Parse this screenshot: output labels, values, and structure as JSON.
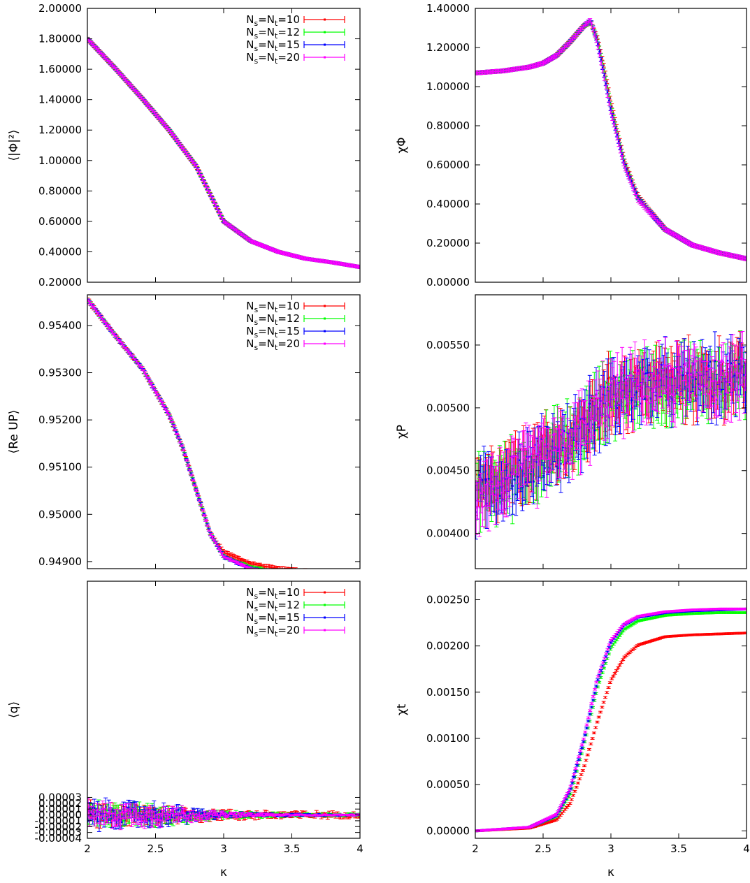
{
  "figure": {
    "xlabel_bottom": "κ",
    "xtick_labels": [
      "2",
      "2.5",
      "3",
      "3.5",
      "4"
    ]
  },
  "legend_labels": [
    "Ns=Nt=10",
    "Ns=Nt=12",
    "Ns=Nt=15",
    "Ns=Nt=20"
  ],
  "colors": {
    "series_10": "#ff0000",
    "series_12": "#00ff00",
    "series_15": "#0000ff",
    "series_20": "#ff00ff",
    "axes": "#000000"
  },
  "chart_data": [
    {
      "type": "scatter",
      "id": "phi2",
      "ylabel": "⟨|Φ|²⟩",
      "xlim": [
        2,
        4
      ],
      "ylim": [
        0.2,
        2.0
      ],
      "ytick_labels": [
        "0.20000",
        "0.40000",
        "0.60000",
        "0.80000",
        "1.00000",
        "1.20000",
        "1.40000",
        "1.60000",
        "1.80000",
        "2.00000"
      ],
      "legend": "top-right",
      "series": [
        {
          "name": "Ns=Nt=10",
          "color": "#ff0000",
          "x": [
            2.0,
            2.2,
            2.4,
            2.6,
            2.8,
            3.0,
            3.2,
            3.4,
            3.6,
            3.8,
            4.0
          ],
          "y": [
            1.8,
            1.61,
            1.41,
            1.2,
            0.96,
            0.6,
            0.47,
            0.4,
            0.355,
            0.33,
            0.3
          ],
          "err": 0.01
        },
        {
          "name": "Ns=Nt=12",
          "color": "#00ff00",
          "x": [
            2.0,
            2.2,
            2.4,
            2.6,
            2.8,
            3.0,
            3.2,
            3.4,
            3.6,
            3.8,
            4.0
          ],
          "y": [
            1.8,
            1.61,
            1.41,
            1.2,
            0.96,
            0.6,
            0.47,
            0.4,
            0.355,
            0.33,
            0.3
          ],
          "err": 0.01
        },
        {
          "name": "Ns=Nt=15",
          "color": "#0000ff",
          "x": [
            2.0,
            2.2,
            2.4,
            2.6,
            2.8,
            3.0,
            3.2,
            3.4,
            3.6,
            3.8,
            4.0
          ],
          "y": [
            1.8,
            1.61,
            1.41,
            1.2,
            0.96,
            0.6,
            0.47,
            0.4,
            0.355,
            0.33,
            0.3
          ],
          "err": 0.01
        },
        {
          "name": "Ns=Nt=20",
          "color": "#ff00ff",
          "x": [
            2.0,
            2.2,
            2.4,
            2.6,
            2.8,
            3.0,
            3.2,
            3.4,
            3.6,
            3.8,
            4.0
          ],
          "y": [
            1.8,
            1.61,
            1.41,
            1.2,
            0.96,
            0.6,
            0.47,
            0.4,
            0.355,
            0.33,
            0.3
          ],
          "err": 0.01
        }
      ]
    },
    {
      "type": "scatter",
      "id": "chiphi",
      "ylabel": "χΦ",
      "xlim": [
        2,
        4
      ],
      "ylim": [
        0.0,
        1.4
      ],
      "ytick_labels": [
        "0.00000",
        "0.20000",
        "0.40000",
        "0.60000",
        "0.80000",
        "1.00000",
        "1.20000",
        "1.40000"
      ],
      "legend": "none",
      "series": [
        {
          "name": "Ns=Nt=10",
          "color": "#ff0000",
          "x": [
            2.0,
            2.2,
            2.4,
            2.5,
            2.6,
            2.7,
            2.8,
            2.85,
            2.9,
            2.95,
            3.0,
            3.1,
            3.2,
            3.4,
            3.6,
            3.8,
            4.0
          ],
          "y": [
            1.07,
            1.08,
            1.1,
            1.12,
            1.16,
            1.23,
            1.31,
            1.33,
            1.25,
            1.1,
            0.92,
            0.62,
            0.44,
            0.27,
            0.19,
            0.15,
            0.12
          ],
          "err": 0.01
        },
        {
          "name": "Ns=Nt=12",
          "color": "#00ff00",
          "x": [
            2.0,
            2.2,
            2.4,
            2.5,
            2.6,
            2.7,
            2.8,
            2.85,
            2.9,
            2.95,
            3.0,
            3.1,
            3.2,
            3.4,
            3.6,
            3.8,
            4.0
          ],
          "y": [
            1.07,
            1.08,
            1.1,
            1.12,
            1.16,
            1.23,
            1.31,
            1.33,
            1.24,
            1.08,
            0.9,
            0.61,
            0.43,
            0.27,
            0.19,
            0.15,
            0.12
          ],
          "err": 0.01
        },
        {
          "name": "Ns=Nt=15",
          "color": "#0000ff",
          "x": [
            2.0,
            2.2,
            2.4,
            2.5,
            2.6,
            2.7,
            2.8,
            2.85,
            2.9,
            2.95,
            3.0,
            3.1,
            3.2,
            3.4,
            3.6,
            3.8,
            4.0
          ],
          "y": [
            1.07,
            1.08,
            1.1,
            1.12,
            1.16,
            1.23,
            1.31,
            1.34,
            1.23,
            1.06,
            0.88,
            0.6,
            0.43,
            0.27,
            0.19,
            0.15,
            0.12
          ],
          "err": 0.01
        },
        {
          "name": "Ns=Nt=20",
          "color": "#ff00ff",
          "x": [
            2.0,
            2.2,
            2.4,
            2.5,
            2.6,
            2.7,
            2.8,
            2.85,
            2.9,
            2.95,
            3.0,
            3.1,
            3.2,
            3.4,
            3.6,
            3.8,
            4.0
          ],
          "y": [
            1.07,
            1.08,
            1.1,
            1.12,
            1.16,
            1.23,
            1.31,
            1.34,
            1.22,
            1.05,
            0.87,
            0.59,
            0.42,
            0.27,
            0.19,
            0.15,
            0.12
          ],
          "err": 0.01
        }
      ]
    },
    {
      "type": "scatter",
      "id": "plaquette",
      "ylabel": "⟨Re UP⟩",
      "xlim": [
        2,
        4
      ],
      "ylim": [
        0.94885,
        0.95465
      ],
      "ytick_labels": [
        "0.94900",
        "0.95000",
        "0.95100",
        "0.95200",
        "0.95300",
        "0.95400"
      ],
      "legend": "top-right",
      "series": [
        {
          "name": "Ns=Nt=10",
          "color": "#ff0000",
          "x": [
            2.0,
            2.2,
            2.4,
            2.6,
            2.7,
            2.8,
            2.9,
            3.0,
            3.2,
            3.4,
            3.6,
            3.8,
            4.0
          ],
          "y": [
            0.95455,
            0.9538,
            0.9531,
            0.9521,
            0.9514,
            0.9505,
            0.9496,
            0.9492,
            0.94895,
            0.94885,
            0.9488,
            0.94875,
            0.9487
          ],
          "err": 4e-05
        },
        {
          "name": "Ns=Nt=12",
          "color": "#00ff00",
          "x": [
            2.0,
            2.2,
            2.4,
            2.6,
            2.7,
            2.8,
            2.9,
            3.0,
            3.2,
            3.4,
            3.6,
            3.8,
            4.0
          ],
          "y": [
            0.95455,
            0.9538,
            0.9531,
            0.9521,
            0.9514,
            0.9505,
            0.9496,
            0.9491,
            0.94888,
            0.94878,
            0.94875,
            0.9487,
            0.94868
          ],
          "err": 3e-05
        },
        {
          "name": "Ns=Nt=15",
          "color": "#0000ff",
          "x": [
            2.0,
            2.2,
            2.4,
            2.6,
            2.7,
            2.8,
            2.9,
            3.0,
            3.2,
            3.4,
            3.6,
            3.8,
            4.0
          ],
          "y": [
            0.95455,
            0.9538,
            0.9531,
            0.9521,
            0.9514,
            0.9505,
            0.9496,
            0.9491,
            0.94885,
            0.94875,
            0.9487,
            0.94868,
            0.94866
          ],
          "err": 3e-05
        },
        {
          "name": "Ns=Nt=20",
          "color": "#ff00ff",
          "x": [
            2.0,
            2.2,
            2.4,
            2.6,
            2.7,
            2.8,
            2.9,
            3.0,
            3.2,
            3.4,
            3.6,
            3.8,
            4.0
          ],
          "y": [
            0.95455,
            0.9538,
            0.9531,
            0.9521,
            0.9514,
            0.9505,
            0.9496,
            0.9491,
            0.94885,
            0.94875,
            0.9487,
            0.94868,
            0.94866
          ],
          "err": 2e-05
        }
      ]
    },
    {
      "type": "scatter",
      "id": "chip",
      "ylabel": "χP",
      "xlim": [
        2,
        4
      ],
      "ylim": [
        0.00372,
        0.0059
      ],
      "ytick_labels": [
        "0.00400",
        "0.00450",
        "0.00500",
        "0.00550"
      ],
      "legend": "none",
      "series": [
        {
          "name": "Ns=Nt=10",
          "color": "#ff0000",
          "x": [
            2.0,
            2.25,
            2.5,
            2.75,
            3.0,
            3.25,
            3.5,
            3.75,
            4.0
          ],
          "y": [
            0.0043,
            0.00445,
            0.0046,
            0.00478,
            0.0051,
            0.00518,
            0.0052,
            0.00522,
            0.00525
          ],
          "err": 0.00018
        },
        {
          "name": "Ns=Nt=12",
          "color": "#00ff00",
          "x": [
            2.0,
            2.25,
            2.5,
            2.75,
            3.0,
            3.25,
            3.5,
            3.75,
            4.0
          ],
          "y": [
            0.0043,
            0.00444,
            0.0046,
            0.00478,
            0.0051,
            0.00517,
            0.0052,
            0.00522,
            0.00525
          ],
          "err": 0.00018
        },
        {
          "name": "Ns=Nt=15",
          "color": "#0000ff",
          "x": [
            2.0,
            2.25,
            2.5,
            2.75,
            3.0,
            3.25,
            3.5,
            3.75,
            4.0
          ],
          "y": [
            0.0043,
            0.00444,
            0.0046,
            0.00478,
            0.0051,
            0.00518,
            0.0052,
            0.00522,
            0.00525
          ],
          "err": 0.00018
        },
        {
          "name": "Ns=Nt=20",
          "color": "#ff00ff",
          "x": [
            2.0,
            2.25,
            2.5,
            2.75,
            3.0,
            3.25,
            3.5,
            3.75,
            4.0
          ],
          "y": [
            0.0043,
            0.00444,
            0.0046,
            0.00478,
            0.0051,
            0.00517,
            0.0052,
            0.00522,
            0.00525
          ],
          "err": 0.00018
        }
      ]
    },
    {
      "type": "scatter",
      "id": "q",
      "ylabel": "⟨q⟩",
      "xlim": [
        2,
        4
      ],
      "ylim": [
        -4e-05,
        0.0004
      ],
      "ytick_labels": [
        "-0.00004",
        "-0.00003",
        "-0.00002",
        "-0.00001",
        "0.00000",
        "0.00001",
        "0.00002",
        "0.00003"
      ],
      "legend": "top-right",
      "series": [
        {
          "name": "Ns=Nt=10",
          "color": "#ff0000",
          "x": [
            2.0,
            2.5,
            3.0,
            3.5,
            4.0
          ],
          "y": [
            0.0,
            0.0,
            0.0,
            0.0,
            0.0
          ],
          "err": [
            1.2e-05,
            1e-05,
            5e-06,
            4e-06,
            3e-06
          ]
        },
        {
          "name": "Ns=Nt=12",
          "color": "#00ff00",
          "x": [
            2.0,
            2.5,
            3.0,
            3.5,
            4.0
          ],
          "y": [
            0.0,
            0.0,
            0.0,
            0.0,
            0.0
          ],
          "err": [
            1.3e-05,
            1.1e-05,
            4e-06,
            2e-06,
            2e-06
          ]
        },
        {
          "name": "Ns=Nt=15",
          "color": "#0000ff",
          "x": [
            2.0,
            2.5,
            3.0,
            3.5,
            4.0
          ],
          "y": [
            0.0,
            0.0,
            0.0,
            0.0,
            0.0
          ],
          "err": [
            1.4e-05,
            1.2e-05,
            3e-06,
            1.5e-06,
            1e-06
          ]
        },
        {
          "name": "Ns=Nt=20",
          "color": "#ff00ff",
          "x": [
            2.0,
            2.5,
            3.0,
            3.5,
            4.0
          ],
          "y": [
            0.0,
            0.0,
            0.0,
            0.0,
            0.0
          ],
          "err": [
            1.3e-05,
            1.1e-05,
            3e-06,
            1e-06,
            1e-06
          ]
        }
      ]
    },
    {
      "type": "scatter",
      "id": "chit",
      "ylabel": "χt",
      "xlim": [
        2,
        4
      ],
      "ylim": [
        -8e-05,
        0.0027
      ],
      "ytick_labels": [
        "0.00000",
        "0.00050",
        "0.00100",
        "0.00150",
        "0.00200",
        "0.00250"
      ],
      "legend": "none",
      "series": [
        {
          "name": "Ns=Nt=10",
          "color": "#ff0000",
          "x": [
            2.0,
            2.4,
            2.6,
            2.7,
            2.8,
            2.9,
            3.0,
            3.1,
            3.2,
            3.4,
            3.6,
            3.8,
            4.0
          ],
          "y": [
            0.0,
            3e-05,
            0.00012,
            0.0003,
            0.00068,
            0.00118,
            0.00163,
            0.00188,
            0.00201,
            0.0021,
            0.00212,
            0.00213,
            0.00214
          ],
          "err": 1e-05
        },
        {
          "name": "Ns=Nt=12",
          "color": "#00ff00",
          "x": [
            2.0,
            2.4,
            2.6,
            2.7,
            2.8,
            2.9,
            3.0,
            3.1,
            3.2,
            3.4,
            3.6,
            3.8,
            4.0
          ],
          "y": [
            0.0,
            4e-05,
            0.00016,
            0.0004,
            0.00092,
            0.00155,
            0.00198,
            0.00218,
            0.00227,
            0.00233,
            0.00235,
            0.00236,
            0.00236
          ],
          "err": 1e-05
        },
        {
          "name": "Ns=Nt=15",
          "color": "#0000ff",
          "x": [
            2.0,
            2.4,
            2.6,
            2.7,
            2.8,
            2.9,
            3.0,
            3.1,
            3.2,
            3.4,
            3.6,
            3.8,
            4.0
          ],
          "y": [
            0.0,
            4e-05,
            0.00017,
            0.00044,
            0.00098,
            0.00162,
            0.00204,
            0.00223,
            0.00231,
            0.00236,
            0.00238,
            0.00239,
            0.0024
          ],
          "err": 1e-05
        },
        {
          "name": "Ns=Nt=20",
          "color": "#ff00ff",
          "x": [
            2.0,
            2.4,
            2.6,
            2.7,
            2.8,
            2.9,
            3.0,
            3.1,
            3.2,
            3.4,
            3.6,
            3.8,
            4.0
          ],
          "y": [
            0.0,
            4e-05,
            0.00018,
            0.00046,
            0.001,
            0.00165,
            0.00206,
            0.00224,
            0.00232,
            0.00237,
            0.00239,
            0.0024,
            0.0024
          ],
          "err": 1e-05
        }
      ]
    }
  ]
}
